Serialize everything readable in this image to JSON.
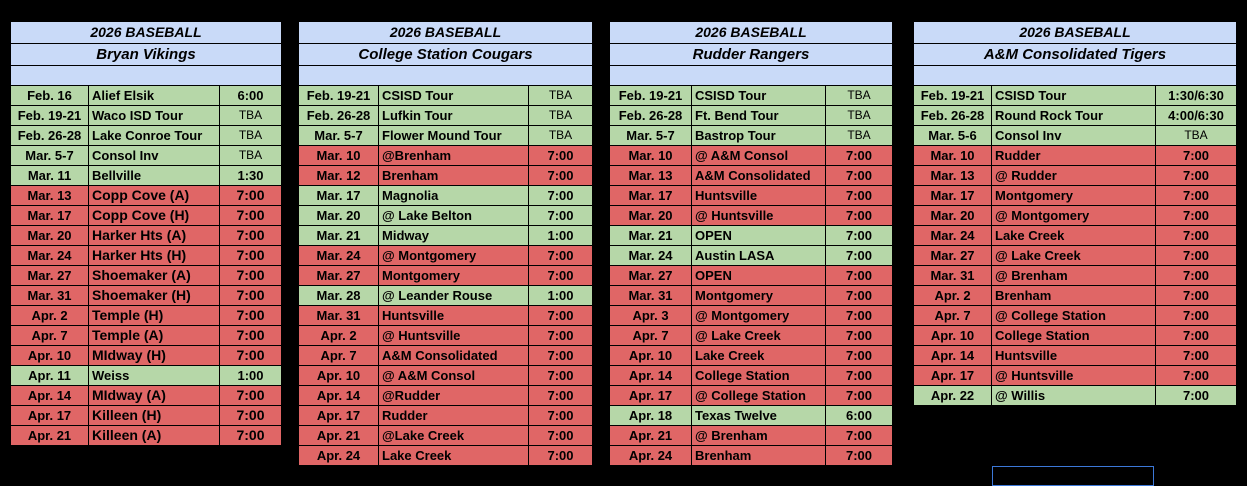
{
  "colors": {
    "header": "#c9daf8",
    "win": "#b6d7a8",
    "loss": "#e06666",
    "background": "#000000"
  },
  "tables": [
    {
      "title": "2026 BASEBALL",
      "team": "Bryan Vikings",
      "rows": [
        {
          "date": "Feb. 16",
          "opp": "Alief Elsik",
          "time": "6:00",
          "result": "win"
        },
        {
          "date": "Feb. 19-21",
          "opp": "Waco ISD Tour",
          "time": "TBA",
          "result": "win"
        },
        {
          "date": "Feb. 26-28",
          "opp": "Lake Conroe Tour",
          "time": "TBA",
          "result": "win"
        },
        {
          "date": "Mar. 5-7",
          "opp": "Consol Inv",
          "time": "TBA",
          "result": "win"
        },
        {
          "date": "Mar. 11",
          "opp": "Bellville",
          "time": "1:30",
          "result": "win"
        },
        {
          "date": "Mar. 13",
          "opp": "Copp Cove (A)",
          "time": "7:00",
          "result": "loss"
        },
        {
          "date": "Mar. 17",
          "opp": "Copp Cove (H)",
          "time": "7:00",
          "result": "loss"
        },
        {
          "date": "Mar. 20",
          "opp": "Harker Hts (A)",
          "time": "7:00",
          "result": "loss"
        },
        {
          "date": "Mar. 24",
          "opp": "Harker Hts (H)",
          "time": "7:00",
          "result": "loss"
        },
        {
          "date": "Mar. 27",
          "opp": "Shoemaker (A)",
          "time": "7:00",
          "result": "loss"
        },
        {
          "date": "Mar. 31",
          "opp": "Shoemaker (H)",
          "time": "7:00",
          "result": "loss"
        },
        {
          "date": "Apr. 2",
          "opp": "Temple (H)",
          "time": "7:00",
          "result": "loss"
        },
        {
          "date": "Apr. 7",
          "opp": "Temple (A)",
          "time": "7:00",
          "result": "loss"
        },
        {
          "date": "Apr. 10",
          "opp": "MIdway (H)",
          "time": "7:00",
          "result": "loss"
        },
        {
          "date": "Apr. 11",
          "opp": "Weiss",
          "time": "1:00",
          "result": "win"
        },
        {
          "date": "Apr. 14",
          "opp": "MIdway (A)",
          "time": "7:00",
          "result": "loss"
        },
        {
          "date": "Apr. 17",
          "opp": "Killeen (H)",
          "time": "7:00",
          "result": "loss"
        },
        {
          "date": "Apr. 21",
          "opp": "Killeen (A)",
          "time": "7:00",
          "result": "loss"
        }
      ]
    },
    {
      "title": "2026 BASEBALL",
      "team": "College Station Cougars",
      "rows": [
        {
          "date": "Feb. 19-21",
          "opp": "CSISD Tour",
          "time": "TBA",
          "result": "win"
        },
        {
          "date": "Feb. 26-28",
          "opp": "Lufkin Tour",
          "time": "TBA",
          "result": "win"
        },
        {
          "date": "Mar. 5-7",
          "opp": "Flower Mound Tour",
          "time": "TBA",
          "result": "win"
        },
        {
          "date": "Mar. 10",
          "opp": "@Brenham",
          "time": "7:00",
          "result": "loss"
        },
        {
          "date": "Mar. 12",
          "opp": "Brenham",
          "time": "7:00",
          "result": "loss"
        },
        {
          "date": "Mar. 17",
          "opp": " Magnolia",
          "time": "7:00",
          "result": "win"
        },
        {
          "date": "Mar. 20",
          "opp": "@ Lake Belton",
          "time": "7:00",
          "result": "win"
        },
        {
          "date": "Mar. 21",
          "opp": "Midway",
          "time": "1:00",
          "result": "win"
        },
        {
          "date": "Mar. 24",
          "opp": "@ Montgomery",
          "time": "7:00",
          "result": "loss"
        },
        {
          "date": "Mar. 27",
          "opp": "Montgomery",
          "time": "7:00",
          "result": "loss"
        },
        {
          "date": "Mar. 28",
          "opp": "@ Leander Rouse",
          "time": "1:00",
          "result": "win"
        },
        {
          "date": "Mar. 31",
          "opp": "Huntsville",
          "time": "7:00",
          "result": "loss"
        },
        {
          "date": "Apr. 2",
          "opp": "@ Huntsville",
          "time": "7:00",
          "result": "loss"
        },
        {
          "date": "Apr. 7",
          "opp": "A&M Consolidated",
          "time": "7:00",
          "result": "loss"
        },
        {
          "date": "Apr. 10",
          "opp": "@ A&M Consol",
          "time": "7:00",
          "result": "loss"
        },
        {
          "date": "Apr. 14",
          "opp": "@Rudder",
          "time": "7:00",
          "result": "loss"
        },
        {
          "date": "Apr. 17",
          "opp": " Rudder",
          "time": "7:00",
          "result": "loss"
        },
        {
          "date": "Apr. 21",
          "opp": "@Lake Creek",
          "time": "7:00",
          "result": "loss"
        },
        {
          "date": "Apr. 24",
          "opp": "Lake Creek",
          "time": "7:00",
          "result": "loss"
        }
      ]
    },
    {
      "title": "2026 BASEBALL",
      "team": "Rudder Rangers",
      "rows": [
        {
          "date": "Feb. 19-21",
          "opp": "CSISD Tour",
          "time": "TBA",
          "result": "win"
        },
        {
          "date": "Feb. 26-28",
          "opp": "Ft. Bend Tour",
          "time": "TBA",
          "result": "win"
        },
        {
          "date": "Mar. 5-7",
          "opp": "Bastrop Tour",
          "time": "TBA",
          "result": "win"
        },
        {
          "date": "Mar. 10",
          "opp": "@ A&M Consol",
          "time": "7:00",
          "result": "loss"
        },
        {
          "date": "Mar. 13",
          "opp": "A&M Consolidated",
          "time": "7:00",
          "result": "loss"
        },
        {
          "date": "Mar. 17",
          "opp": "Huntsville",
          "time": "7:00",
          "result": "loss"
        },
        {
          "date": "Mar. 20",
          "opp": "@ Huntsville",
          "time": "7:00",
          "result": "loss"
        },
        {
          "date": "Mar. 21",
          "opp": "OPEN",
          "time": "7:00",
          "result": "win"
        },
        {
          "date": "Mar. 24",
          "opp": "Austin LASA",
          "time": "7:00",
          "result": "win"
        },
        {
          "date": "Mar. 27",
          "opp": "OPEN",
          "time": "7:00",
          "result": "loss"
        },
        {
          "date": "Mar. 31",
          "opp": "Montgomery",
          "time": "7:00",
          "result": "loss"
        },
        {
          "date": "Apr. 3",
          "opp": "@ Montgomery",
          "time": "7:00",
          "result": "loss"
        },
        {
          "date": "Apr. 7",
          "opp": "@ Lake Creek",
          "time": "7:00",
          "result": "loss"
        },
        {
          "date": "Apr. 10",
          "opp": "Lake Creek",
          "time": "7:00",
          "result": "loss"
        },
        {
          "date": "Apr. 14",
          "opp": "College Station",
          "time": "7:00",
          "result": "loss"
        },
        {
          "date": "Apr. 17",
          "opp": "@ College Station",
          "time": "7:00",
          "result": "loss"
        },
        {
          "date": "Apr. 18",
          "opp": "Texas Twelve",
          "time": "6:00",
          "result": "win"
        },
        {
          "date": "Apr. 21",
          "opp": "@ Brenham",
          "time": "7:00",
          "result": "loss"
        },
        {
          "date": "Apr. 24",
          "opp": "Brenham",
          "time": "7:00",
          "result": "loss"
        }
      ]
    },
    {
      "title": "2026 BASEBALL",
      "team": "A&M Consolidated Tigers",
      "rows": [
        {
          "date": "Feb. 19-21",
          "opp": "CSISD Tour",
          "time": "1:30/6:30",
          "result": "win"
        },
        {
          "date": "Feb. 26-28",
          "opp": "Round Rock Tour",
          "time": "4:00/6:30",
          "result": "win"
        },
        {
          "date": "Mar. 5-6",
          "opp": "Consol Inv",
          "time": "TBA",
          "result": "win"
        },
        {
          "date": "Mar. 10",
          "opp": "Rudder",
          "time": "7:00",
          "result": "loss"
        },
        {
          "date": "Mar. 13",
          "opp": "@ Rudder",
          "time": "7:00",
          "result": "loss"
        },
        {
          "date": "Mar. 17",
          "opp": "Montgomery",
          "time": "7:00",
          "result": "loss"
        },
        {
          "date": "Mar. 20",
          "opp": "@ Montgomery",
          "time": "7:00",
          "result": "loss"
        },
        {
          "date": "Mar. 24",
          "opp": "Lake Creek",
          "time": "7:00",
          "result": "loss"
        },
        {
          "date": "Mar. 27",
          "opp": "@ Lake Creek",
          "time": "7:00",
          "result": "loss"
        },
        {
          "date": "Mar. 31",
          "opp": "@ Brenham",
          "time": "7:00",
          "result": "loss"
        },
        {
          "date": "Apr. 2",
          "opp": "Brenham",
          "time": "7:00",
          "result": "loss"
        },
        {
          "date": "Apr. 7",
          "opp": "@ College Station",
          "time": "7:00",
          "result": "loss"
        },
        {
          "date": "Apr. 10",
          "opp": "College Station",
          "time": "7:00",
          "result": "loss"
        },
        {
          "date": "Apr. 14",
          "opp": "Huntsville",
          "time": "7:00",
          "result": "loss"
        },
        {
          "date": "Apr. 17",
          "opp": "@ Huntsville",
          "time": "7:00",
          "result": "loss"
        },
        {
          "date": "Apr. 22",
          "opp": "@ Willis",
          "time": "7:00",
          "result": "win"
        }
      ]
    }
  ]
}
